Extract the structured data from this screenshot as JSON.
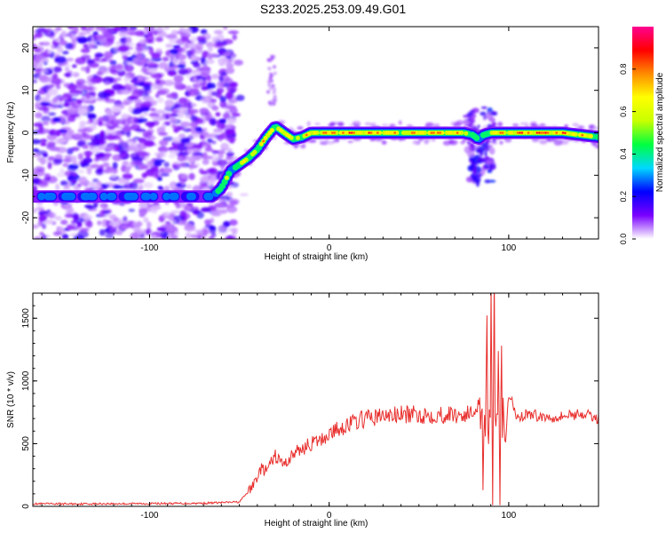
{
  "title": "S233.2025.253.09.49.G01",
  "chart_data": [
    {
      "type": "heatmap",
      "xlabel": "Height of straight line (km)",
      "ylabel": "Frequency (Hz)",
      "xlim": [
        -165,
        150
      ],
      "ylim": [
        -25,
        25
      ],
      "x_ticks": [
        -100,
        0,
        100
      ],
      "y_ticks": [
        -20,
        -10,
        0,
        10,
        20
      ],
      "colorbar": {
        "label": "Normalized spectral amplitude",
        "range": [
          0,
          1
        ],
        "ticks": [
          "0.0",
          "0.2",
          "0.4",
          "0.6",
          "0.8"
        ],
        "colors": [
          "#ffffff",
          "#7a00ff",
          "#0000ff",
          "#00d8ff",
          "#00ff40",
          "#c8ff00",
          "#ffff00",
          "#ff8c00",
          "#ff0000",
          "#ff0090"
        ]
      },
      "ridge": {
        "x": [
          -165,
          -65,
          -60,
          -55,
          -50,
          -45,
          -40,
          -35,
          -30,
          -25,
          -20,
          -15,
          -10,
          -5,
          0,
          10,
          20,
          40,
          60,
          75,
          80,
          83,
          86,
          90,
          100,
          110,
          130,
          150
        ],
        "frequency": [
          -15,
          -15,
          -13,
          -9,
          -7.5,
          -6,
          -4,
          -1,
          1.5,
          0,
          -1.5,
          -1,
          0,
          0,
          0,
          0,
          0,
          0,
          0,
          0,
          -0.5,
          -1.5,
          -0.5,
          0,
          0,
          0,
          0,
          -1
        ],
        "amplitude": [
          0.3,
          0.3,
          0.45,
          0.5,
          0.55,
          0.6,
          0.65,
          0.7,
          0.75,
          0.65,
          0.6,
          0.65,
          0.7,
          0.75,
          0.8,
          0.9,
          0.85,
          0.7,
          0.8,
          0.7,
          0.5,
          0.3,
          0.5,
          0.7,
          0.75,
          0.9,
          0.85,
          0.6
        ]
      },
      "noise_region_x": [
        -165,
        -53
      ]
    },
    {
      "type": "line",
      "xlabel": "Height of straight line (km)",
      "ylabel": "SNR (10 * v/v)",
      "xlim": [
        -165,
        150
      ],
      "ylim": [
        0,
        1700
      ],
      "x_ticks": [
        -100,
        0,
        100
      ],
      "y_ticks": [
        0,
        500,
        1000,
        1500
      ],
      "color": "#e8302e",
      "series": [
        {
          "x": [
            -165,
            -140,
            -100,
            -70,
            -50,
            -43,
            -38,
            -35,
            -30,
            -25,
            -20,
            -15,
            -10,
            -5,
            0,
            10,
            20,
            30,
            40,
            60,
            75,
            80,
            84,
            86,
            88,
            89,
            90,
            91,
            92,
            93,
            94,
            95,
            96,
            98,
            100,
            105,
            110,
            120,
            130,
            140,
            150
          ],
          "values": [
            20,
            20,
            22,
            25,
            35,
            150,
            300,
            280,
            400,
            330,
            420,
            460,
            500,
            520,
            580,
            650,
            700,
            720,
            730,
            730,
            730,
            740,
            850,
            400,
            1200,
            150,
            1700,
            200,
            1500,
            300,
            1300,
            250,
            1100,
            400,
            900,
            700,
            740,
            710,
            720,
            740,
            700
          ]
        }
      ]
    }
  ]
}
